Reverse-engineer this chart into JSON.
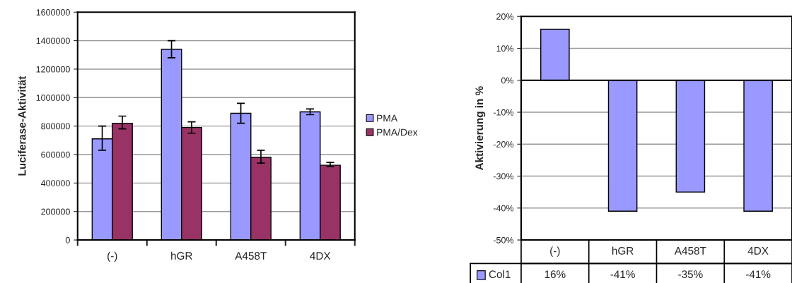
{
  "chart_data": [
    {
      "type": "bar",
      "ylabel": "Luciferase-Aktivität",
      "categories": [
        "(-)",
        "hGR",
        "A458T",
        "4DX"
      ],
      "series": [
        {
          "name": "PMA",
          "color": "#9999ff",
          "values": [
            710000,
            1340000,
            890000,
            900000
          ],
          "errors": [
            [
              630000,
              800000
            ],
            [
              1280000,
              1400000
            ],
            [
              820000,
              960000
            ],
            [
              880000,
              920000
            ]
          ]
        },
        {
          "name": "PMA/Dex",
          "color": "#993366",
          "values": [
            820000,
            790000,
            580000,
            525000
          ],
          "errors": [
            [
              780000,
              870000
            ],
            [
              750000,
              830000
            ],
            [
              540000,
              630000
            ],
            [
              515000,
              545000
            ]
          ]
        }
      ],
      "ylim": [
        0,
        1600000
      ],
      "yticks": [
        0,
        200000,
        400000,
        600000,
        800000,
        1000000,
        1200000,
        1400000,
        1600000
      ],
      "grid": "y",
      "legend": "right"
    },
    {
      "type": "bar",
      "ylabel": "Aktivierung in %",
      "categories": [
        "(-)",
        "hGR",
        "A458T",
        "4DX"
      ],
      "series": [
        {
          "name": "Col1",
          "color": "#9999ff",
          "values": [
            16,
            -41,
            -35,
            -41
          ]
        }
      ],
      "ylim": [
        -50,
        20
      ],
      "yticks": [
        {
          "value": -50,
          "label": "-50%"
        },
        {
          "value": -40,
          "label": "-40%"
        },
        {
          "value": -30,
          "label": "-30%"
        },
        {
          "value": -20,
          "label": "-20%"
        },
        {
          "value": -10,
          "label": "-10%"
        },
        {
          "value": 0,
          "label": "0%"
        },
        {
          "value": 10,
          "label": "10%"
        },
        {
          "value": 20,
          "label": "20%"
        }
      ],
      "grid": "y",
      "value_labels": [
        "16%",
        "-41%",
        "-35%",
        "-41%"
      ]
    }
  ]
}
